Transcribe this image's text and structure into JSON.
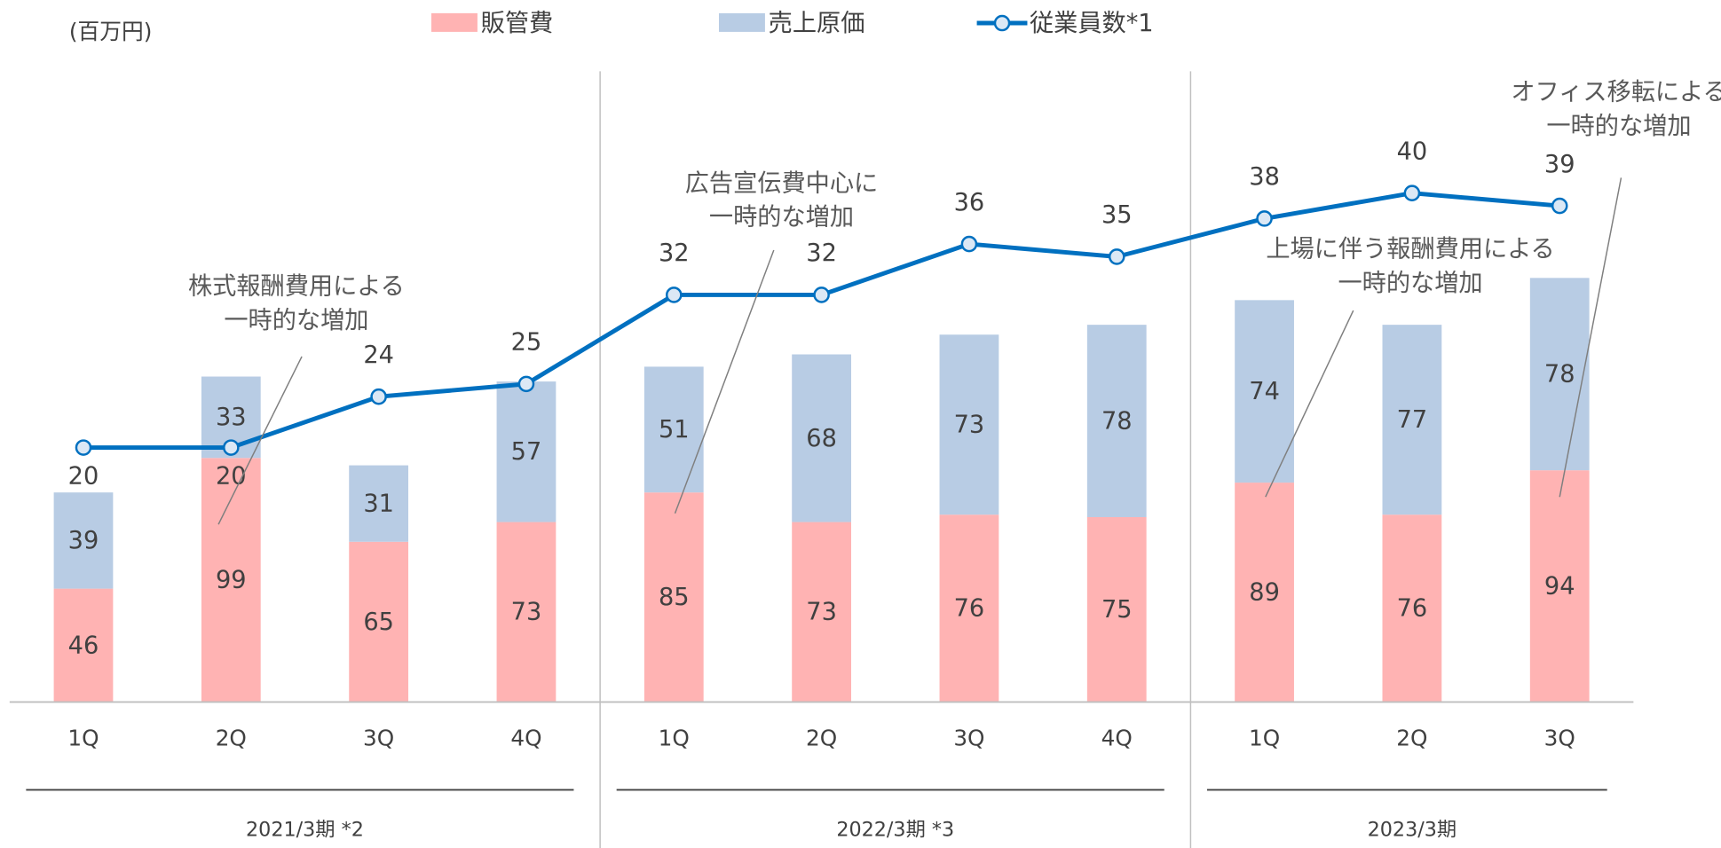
{
  "chart_data": {
    "type": "bar",
    "stacked": true,
    "unit_label": "(百万円)",
    "categories": [
      "1Q",
      "2Q",
      "3Q",
      "4Q",
      "1Q",
      "2Q",
      "3Q",
      "4Q",
      "1Q",
      "2Q",
      "3Q"
    ],
    "groups": [
      {
        "label": "2021/3期 *2",
        "size": 4
      },
      {
        "label": "2022/3期 *3",
        "size": 4
      },
      {
        "label": "2023/3期",
        "size": 3
      }
    ],
    "series": [
      {
        "name": "販管費",
        "type": "bar",
        "color": "#ffb3b3",
        "values": [
          46,
          99,
          65,
          73,
          85,
          73,
          76,
          75,
          89,
          76,
          94
        ]
      },
      {
        "name": "売上原価",
        "type": "bar",
        "color": "#b8cce4",
        "values": [
          39,
          33,
          31,
          57,
          51,
          68,
          73,
          78,
          74,
          77,
          78
        ]
      },
      {
        "name": "従業員数*1",
        "type": "line",
        "axis": "y2",
        "color": "#0070c0",
        "values": [
          20,
          20,
          24,
          25,
          32,
          32,
          36,
          35,
          38,
          40,
          39
        ]
      }
    ],
    "ylim": [
      0,
      258
    ],
    "y2lim": [
      0,
      50
    ],
    "annotations": [
      {
        "lines": [
          "株式報酬費用による",
          "一時的な増加"
        ]
      },
      {
        "lines": [
          "広告宣伝費中心に",
          "一時的な増加"
        ]
      },
      {
        "lines": [
          "上場に伴う報酬費用による",
          "一時的な増加"
        ]
      },
      {
        "lines": [
          "オフィス移転による",
          "一時的な増加"
        ]
      }
    ]
  }
}
